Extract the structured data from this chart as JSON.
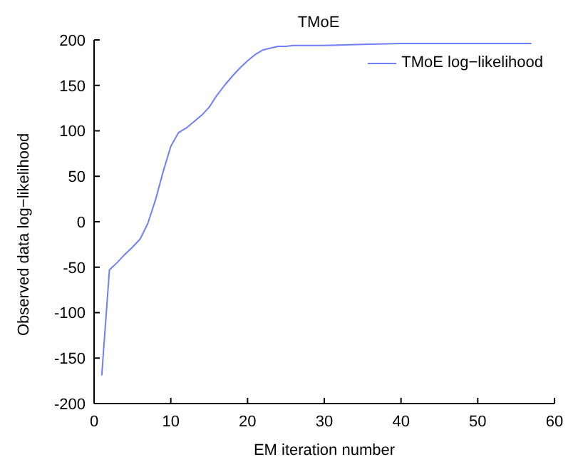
{
  "chart_data": {
    "type": "line",
    "title": "TMoE",
    "xlabel": "EM iteration number",
    "ylabel": "Observed data log−likelihood",
    "x": [
      1,
      2,
      3,
      4,
      5,
      6,
      7,
      8,
      9,
      10,
      11,
      12,
      13,
      14,
      15,
      16,
      17,
      18,
      19,
      20,
      21,
      22,
      23,
      24,
      25,
      26,
      28,
      30,
      35,
      40,
      45,
      50,
      57
    ],
    "series": [
      {
        "name": "TMoE log−likelihood",
        "color": "#6f7ff7",
        "values": [
          -169,
          -53,
          -45,
          -36,
          -28,
          -19,
          -2,
          24,
          55,
          83,
          98,
          103,
          110,
          117,
          126,
          139,
          150,
          160,
          169,
          177,
          184,
          189,
          191,
          193,
          193,
          194,
          194,
          194,
          195,
          196,
          196,
          196,
          196
        ]
      }
    ],
    "xlim": [
      0,
      60
    ],
    "xticks": [
      0,
      10,
      20,
      30,
      40,
      50,
      60
    ],
    "ylim": [
      -200,
      200
    ],
    "yticks": [
      -200,
      -150,
      -100,
      -50,
      0,
      50,
      100,
      150,
      200
    ],
    "grid": false,
    "legend": "top right",
    "marker": "none",
    "line_style": "solid"
  }
}
